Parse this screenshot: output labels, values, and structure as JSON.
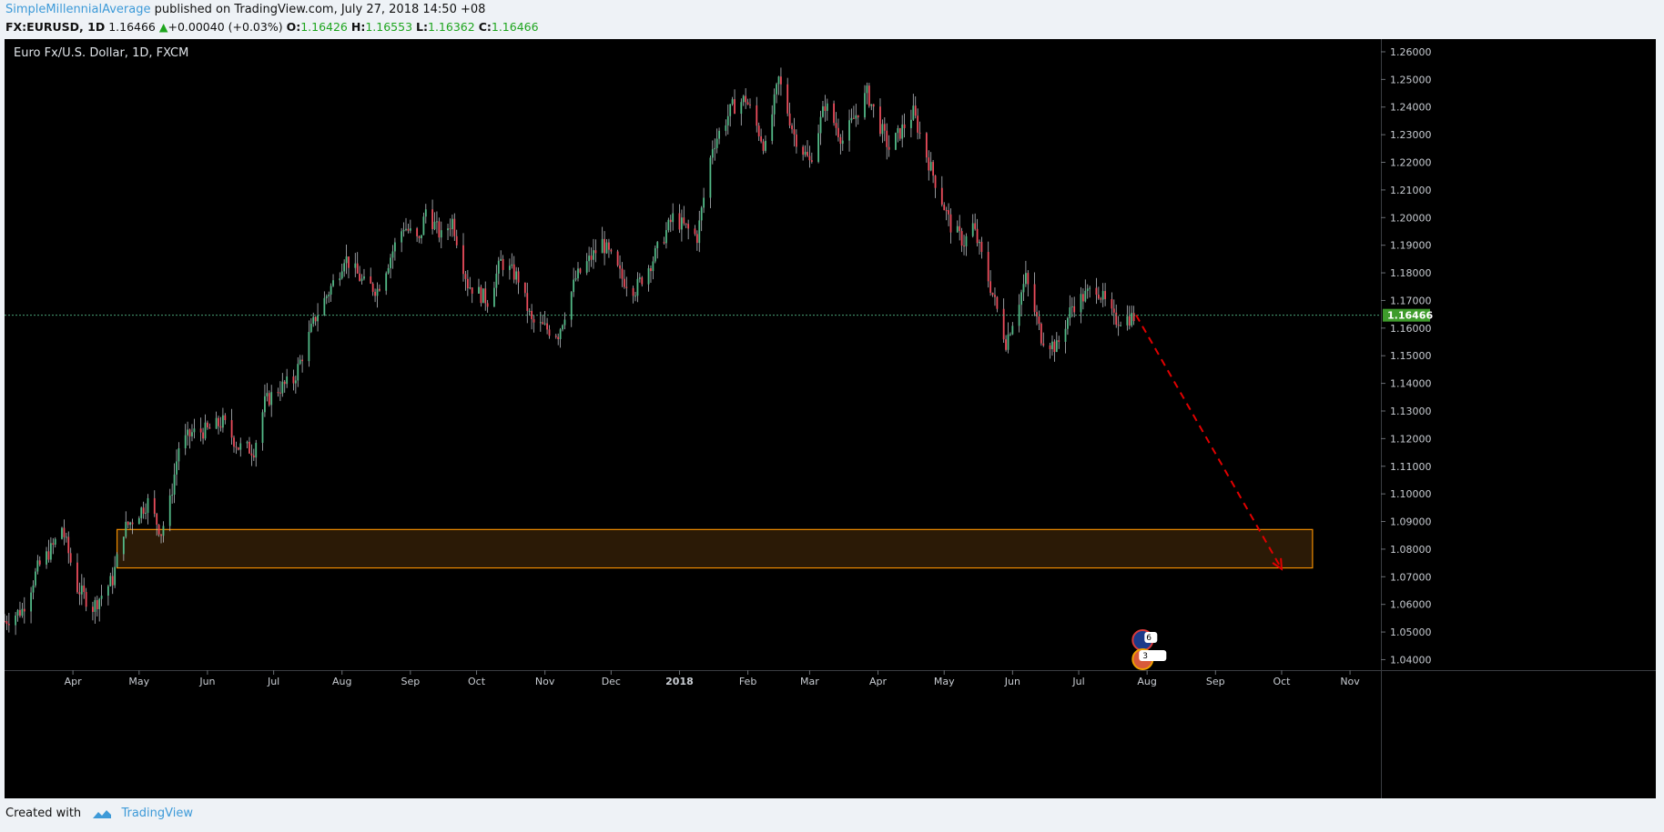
{
  "header": {
    "author": "SimpleMillennialAverage",
    "published": "published on TradingView.com, July 27, 2018 14:50 +08",
    "symbol": "FX:EURUSD, 1D",
    "last": "1.16466",
    "change": "+0.00040 (+0.03%)",
    "o_label": "O:",
    "o": "1.16426",
    "h_label": "H:",
    "h": "1.16553",
    "l_label": "L:",
    "l": "1.16362",
    "c_label": "C:",
    "c": "1.16466"
  },
  "footer": {
    "created_with": "Created with",
    "brand": "TradingView"
  },
  "chart_data": {
    "type": "candlestick",
    "title": "Euro Fx/U.S. Dollar, 1D, FXCM",
    "ylim": [
      1.0362,
      1.2646
    ],
    "y_ticks": [
      "1.26000",
      "1.25000",
      "1.24000",
      "1.23000",
      "1.22000",
      "1.21000",
      "1.20000",
      "1.19000",
      "1.18000",
      "1.17000",
      "1.16000",
      "1.15000",
      "1.14000",
      "1.13000",
      "1.12000",
      "1.11000",
      "1.10000",
      "1.09000",
      "1.08000",
      "1.07000",
      "1.06000",
      "1.05000",
      "1.04000"
    ],
    "y_tick_values": [
      1.26,
      1.25,
      1.24,
      1.23,
      1.22,
      1.21,
      1.2,
      1.19,
      1.18,
      1.17,
      1.16,
      1.15,
      1.14,
      1.13,
      1.12,
      1.11,
      1.1,
      1.09,
      1.08,
      1.07,
      1.06,
      1.05,
      1.04
    ],
    "x_ticks": [
      {
        "label": "Apr",
        "date": "2017-04-01"
      },
      {
        "label": "May",
        "date": "2017-05-01"
      },
      {
        "label": "Jun",
        "date": "2017-06-01"
      },
      {
        "label": "Jul",
        "date": "2017-07-01"
      },
      {
        "label": "Aug",
        "date": "2017-08-01"
      },
      {
        "label": "Sep",
        "date": "2017-09-01"
      },
      {
        "label": "Oct",
        "date": "2017-10-01"
      },
      {
        "label": "Nov",
        "date": "2017-11-01"
      },
      {
        "label": "Dec",
        "date": "2017-12-01"
      },
      {
        "label": "2018",
        "date": "2018-01-01",
        "bold": true
      },
      {
        "label": "Feb",
        "date": "2018-02-01"
      },
      {
        "label": "Mar",
        "date": "2018-03-01"
      },
      {
        "label": "Apr",
        "date": "2018-04-01"
      },
      {
        "label": "May",
        "date": "2018-05-01"
      },
      {
        "label": "Jun",
        "date": "2018-06-01"
      },
      {
        "label": "Jul",
        "date": "2018-07-01"
      },
      {
        "label": "Aug",
        "date": "2018-08-01"
      },
      {
        "label": "Sep",
        "date": "2018-09-01"
      },
      {
        "label": "Oct",
        "date": "2018-10-01"
      },
      {
        "label": "Nov",
        "date": "2018-11-01"
      }
    ],
    "x_range": [
      "2017-03-01",
      "2018-11-15"
    ],
    "price_path": [
      {
        "date": "2017-03-01",
        "price": 1.054
      },
      {
        "date": "2017-03-09",
        "price": 1.058
      },
      {
        "date": "2017-03-16",
        "price": 1.073
      },
      {
        "date": "2017-03-23",
        "price": 1.081
      },
      {
        "date": "2017-03-27",
        "price": 1.088
      },
      {
        "date": "2017-04-03",
        "price": 1.066
      },
      {
        "date": "2017-04-10",
        "price": 1.059
      },
      {
        "date": "2017-04-19",
        "price": 1.069
      },
      {
        "date": "2017-04-24",
        "price": 1.087
      },
      {
        "date": "2017-05-05",
        "price": 1.097
      },
      {
        "date": "2017-05-11",
        "price": 1.086
      },
      {
        "date": "2017-05-15",
        "price": 1.097
      },
      {
        "date": "2017-05-19",
        "price": 1.117
      },
      {
        "date": "2017-05-25",
        "price": 1.122
      },
      {
        "date": "2017-06-01",
        "price": 1.123
      },
      {
        "date": "2017-06-08",
        "price": 1.126
      },
      {
        "date": "2017-06-15",
        "price": 1.117
      },
      {
        "date": "2017-06-22",
        "price": 1.116
      },
      {
        "date": "2017-06-27",
        "price": 1.133
      },
      {
        "date": "2017-07-03",
        "price": 1.138
      },
      {
        "date": "2017-07-10",
        "price": 1.141
      },
      {
        "date": "2017-07-20",
        "price": 1.164
      },
      {
        "date": "2017-07-31",
        "price": 1.181
      },
      {
        "date": "2017-08-02",
        "price": 1.186
      },
      {
        "date": "2017-08-11",
        "price": 1.176
      },
      {
        "date": "2017-08-17",
        "price": 1.174
      },
      {
        "date": "2017-08-25",
        "price": 1.19
      },
      {
        "date": "2017-08-29",
        "price": 1.197
      },
      {
        "date": "2017-09-05",
        "price": 1.191
      },
      {
        "date": "2017-09-08",
        "price": 1.203
      },
      {
        "date": "2017-09-15",
        "price": 1.193
      },
      {
        "date": "2017-09-20",
        "price": 1.199
      },
      {
        "date": "2017-09-27",
        "price": 1.176
      },
      {
        "date": "2017-10-06",
        "price": 1.17
      },
      {
        "date": "2017-10-12",
        "price": 1.184
      },
      {
        "date": "2017-10-20",
        "price": 1.178
      },
      {
        "date": "2017-10-26",
        "price": 1.162
      },
      {
        "date": "2017-11-07",
        "price": 1.158
      },
      {
        "date": "2017-11-15",
        "price": 1.178
      },
      {
        "date": "2017-11-27",
        "price": 1.191
      },
      {
        "date": "2017-12-06",
        "price": 1.178
      },
      {
        "date": "2017-12-12",
        "price": 1.174
      },
      {
        "date": "2017-12-20",
        "price": 1.185
      },
      {
        "date": "2017-12-29",
        "price": 1.2
      },
      {
        "date": "2018-01-09",
        "price": 1.193
      },
      {
        "date": "2018-01-16",
        "price": 1.226
      },
      {
        "date": "2018-01-25",
        "price": 1.24
      },
      {
        "date": "2018-01-31",
        "price": 1.243
      },
      {
        "date": "2018-02-09",
        "price": 1.225
      },
      {
        "date": "2018-02-15",
        "price": 1.25
      },
      {
        "date": "2018-02-22",
        "price": 1.23
      },
      {
        "date": "2018-03-01",
        "price": 1.22
      },
      {
        "date": "2018-03-08",
        "price": 1.241
      },
      {
        "date": "2018-03-16",
        "price": 1.228
      },
      {
        "date": "2018-03-27",
        "price": 1.245
      },
      {
        "date": "2018-04-06",
        "price": 1.225
      },
      {
        "date": "2018-04-17",
        "price": 1.238
      },
      {
        "date": "2018-04-24",
        "price": 1.22
      },
      {
        "date": "2018-05-04",
        "price": 1.197
      },
      {
        "date": "2018-05-10",
        "price": 1.191
      },
      {
        "date": "2018-05-14",
        "price": 1.197
      },
      {
        "date": "2018-05-22",
        "price": 1.175
      },
      {
        "date": "2018-05-29",
        "price": 1.155
      },
      {
        "date": "2018-06-07",
        "price": 1.178
      },
      {
        "date": "2018-06-14",
        "price": 1.157
      },
      {
        "date": "2018-06-21",
        "price": 1.153
      },
      {
        "date": "2018-06-28",
        "price": 1.168
      },
      {
        "date": "2018-07-09",
        "price": 1.175
      },
      {
        "date": "2018-07-17",
        "price": 1.163
      },
      {
        "date": "2018-07-26",
        "price": 1.164
      }
    ],
    "current_price_label": "1.16466",
    "current_price": 1.16466,
    "zone": {
      "start": "2017-04-21",
      "end": "2018-10-15",
      "low": 1.0732,
      "high": 1.0871,
      "color": "#f08c00"
    },
    "projection": {
      "from_date": "2018-07-27",
      "from_price": 1.1647,
      "to_date": "2018-10-01",
      "to_price": 1.0728,
      "color": "#e00000"
    },
    "event_badges": [
      "6",
      "3"
    ],
    "colors": {
      "up": "#53b987",
      "down": "#eb4d5c",
      "axis_text": "#c8ccd2",
      "background": "#000000",
      "price_badge": "#3e9c2c"
    }
  }
}
